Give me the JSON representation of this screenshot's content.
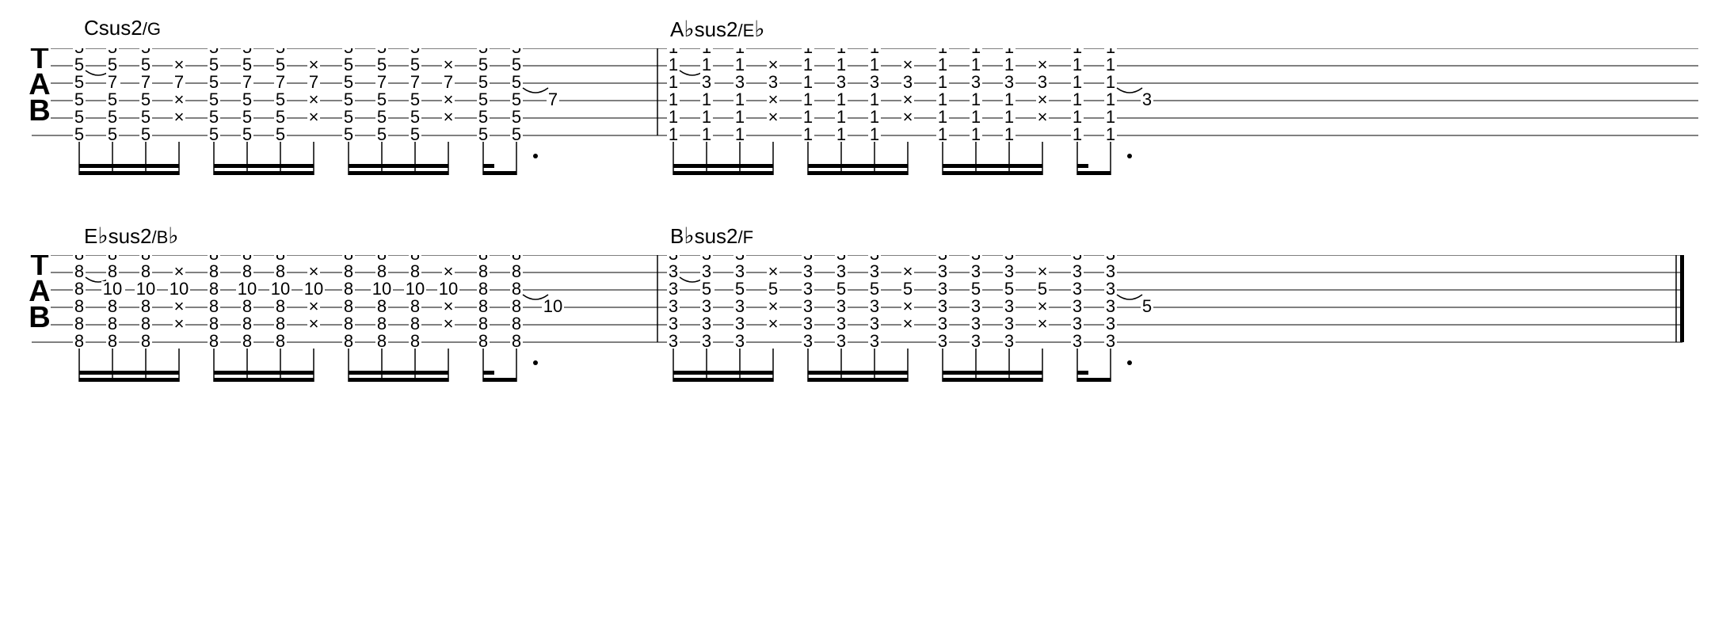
{
  "lines": [
    {
      "measures": [
        {
          "chord": {
            "root": "C",
            "rootFlat": false,
            "suffix": "sus2",
            "bass": "G",
            "bassFlat": false
          },
          "mainFret": "5",
          "hammerFret": "7"
        },
        {
          "chord": {
            "root": "A",
            "rootFlat": true,
            "suffix": "sus2",
            "bass": "E",
            "bassFlat": true
          },
          "mainFret": "1",
          "hammerFret": "3"
        }
      ]
    },
    {
      "measures": [
        {
          "chord": {
            "root": "E",
            "rootFlat": true,
            "suffix": "sus2",
            "bass": "B",
            "bassFlat": true
          },
          "mainFret": "8",
          "hammerFret": "10"
        },
        {
          "chord": {
            "root": "B",
            "rootFlat": true,
            "suffix": "sus2",
            "bass": "F",
            "bassFlat": false
          },
          "mainFret": "3",
          "hammerFret": "5"
        }
      ]
    }
  ],
  "layout": {
    "staffWidth": 2144,
    "staffHeight": 110,
    "lineSpacing": 22,
    "beamAreaHeight": 50,
    "clefX": 30,
    "measureStartX": 80,
    "measureWidth": 720,
    "barlineX": 810,
    "secondMeasureStartX": 830,
    "groupSpacing": 170,
    "noteSpacing": 42,
    "hammerOffset": 32,
    "muteSymbol": "×",
    "fontSize": 22,
    "chordLabelSpacing": 740
  },
  "colors": {
    "staff": "#000000",
    "text": "#000000",
    "background": "#ffffff"
  }
}
